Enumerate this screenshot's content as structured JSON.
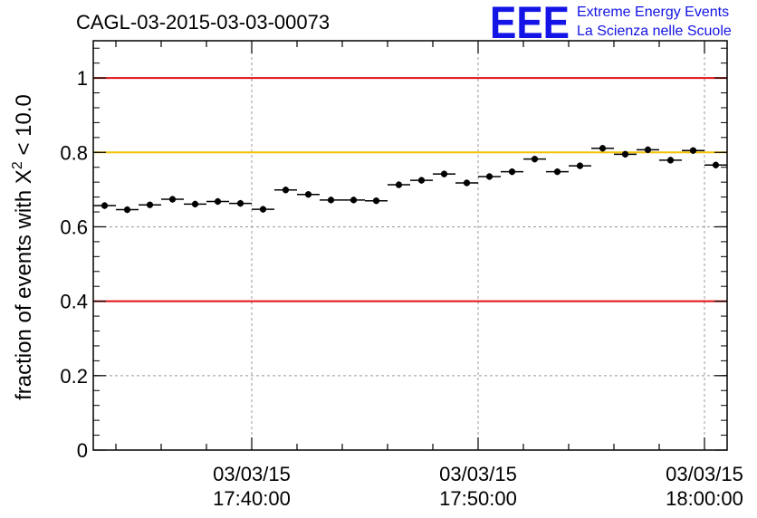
{
  "chart_data": {
    "type": "scatter",
    "title": "CAGL-03-2015-03-03-00073",
    "ylabel_prefix": "fraction of events with X",
    "ylabel_sup": "2",
    "ylabel_suffix": " < 10.0",
    "xlabel": "",
    "ylim": [
      0,
      1.1
    ],
    "xlim_minutes": [
      33.0,
      61.0
    ],
    "yticks": [
      "0",
      "0.2",
      "0.4",
      "0.6",
      "0.8",
      "1"
    ],
    "ytick_values": [
      0,
      0.2,
      0.4,
      0.6,
      0.8,
      1.0
    ],
    "xticks": [
      {
        "date": "03/03/15",
        "time": "17:40:00",
        "minutes": 40
      },
      {
        "date": "03/03/15",
        "time": "17:50:00",
        "minutes": 50
      },
      {
        "date": "03/03/15",
        "time": "18:00:00",
        "minutes": 60
      }
    ],
    "reference_lines": [
      {
        "y": 1.0,
        "color": "#e01010"
      },
      {
        "y": 0.8,
        "color": "#f5c000"
      },
      {
        "y": 0.4,
        "color": "#e01010"
      }
    ],
    "grid": true,
    "marker_color": "#000000",
    "bin_width_minutes": 1.0,
    "x_minutes": [
      33.5,
      34.5,
      35.5,
      36.5,
      37.5,
      38.5,
      39.5,
      40.5,
      41.5,
      42.5,
      43.5,
      44.5,
      45.5,
      46.5,
      47.5,
      48.5,
      49.5,
      50.5,
      51.5,
      52.5,
      53.5,
      54.5,
      55.5,
      56.5,
      57.5,
      58.5,
      59.5,
      60.5
    ],
    "y": [
      0.657,
      0.646,
      0.659,
      0.674,
      0.661,
      0.668,
      0.663,
      0.647,
      0.699,
      0.687,
      0.672,
      0.672,
      0.67,
      0.713,
      0.725,
      0.742,
      0.718,
      0.735,
      0.748,
      0.782,
      0.748,
      0.764,
      0.811,
      0.795,
      0.807,
      0.779,
      0.805,
      0.766
    ],
    "y_err": [
      0.009,
      0.009,
      0.009,
      0.009,
      0.009,
      0.009,
      0.009,
      0.009,
      0.009,
      0.009,
      0.009,
      0.009,
      0.009,
      0.009,
      0.009,
      0.009,
      0.009,
      0.009,
      0.009,
      0.009,
      0.009,
      0.009,
      0.009,
      0.009,
      0.009,
      0.009,
      0.009,
      0.009
    ]
  },
  "logo": {
    "letters": "EEE",
    "line1": "Extreme Energy Events",
    "line2": "La Scienza nelle Scuole"
  }
}
